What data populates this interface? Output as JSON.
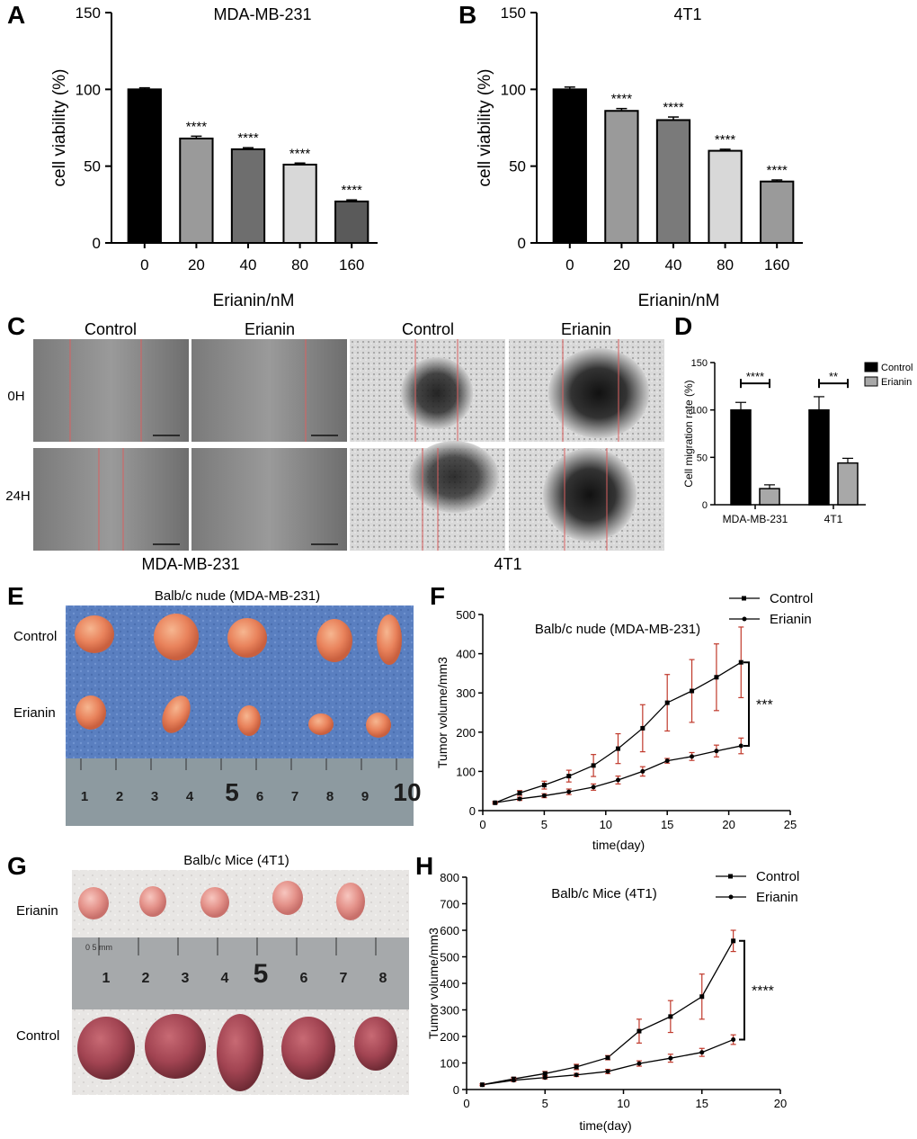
{
  "panels": {
    "A": {
      "letter": "A"
    },
    "B": {
      "letter": "B"
    },
    "C": {
      "letter": "C",
      "col_labels": [
        "Control",
        "Erianin",
        "Control",
        "Erianin"
      ],
      "row_labels": [
        "0H",
        "24H"
      ],
      "group_labels": [
        "MDA-MB-231",
        "4T1"
      ]
    },
    "D": {
      "letter": "D"
    },
    "E": {
      "letter": "E",
      "title": "Balb/c nude (MDA-MB-231)",
      "row_labels": [
        "Control",
        "Erianin"
      ],
      "ruler_numbers": [
        "1",
        "2",
        "3",
        "4",
        "5",
        "6",
        "7",
        "8",
        "9",
        "10"
      ]
    },
    "F": {
      "letter": "F"
    },
    "G": {
      "letter": "G",
      "title": "Balb/c Mice (4T1)",
      "row_labels": [
        "Erianin",
        "Control"
      ],
      "ruler_numbers": [
        "1",
        "2",
        "3",
        "4",
        "5",
        "6",
        "7",
        "8"
      ],
      "ruler_unit": "0 5 mm"
    },
    "H": {
      "letter": "H"
    }
  },
  "chart_data": [
    {
      "id": "A",
      "type": "bar",
      "title": "MDA-MB-231",
      "xlabel": "Erianin/nM",
      "ylabel": "cell viability (%)",
      "categories": [
        "0",
        "20",
        "40",
        "80",
        "160"
      ],
      "values": [
        100,
        68,
        61,
        51,
        27
      ],
      "errors": [
        1,
        1.5,
        1,
        1,
        1
      ],
      "significance": [
        "",
        "****",
        "****",
        "****",
        "****"
      ],
      "colors": [
        "#000000",
        "#9a9a9a",
        "#6e6e6e",
        "#d8d8d8",
        "#5a5a5a"
      ],
      "ylim": [
        0,
        150
      ],
      "yticks": [
        0,
        50,
        100,
        150
      ]
    },
    {
      "id": "B",
      "type": "bar",
      "title": "4T1",
      "xlabel": "Erianin/nM",
      "ylabel": "cell viability (%)",
      "categories": [
        "0",
        "20",
        "40",
        "80",
        "160"
      ],
      "values": [
        100,
        86,
        80,
        60,
        40
      ],
      "errors": [
        1.5,
        1.5,
        2,
        1,
        1
      ],
      "significance": [
        "",
        "****",
        "****",
        "****",
        "****"
      ],
      "colors": [
        "#000000",
        "#9a9a9a",
        "#7a7a7a",
        "#d8d8d8",
        "#9a9a9a"
      ],
      "ylim": [
        0,
        150
      ],
      "yticks": [
        0,
        50,
        100,
        150
      ]
    },
    {
      "id": "D",
      "type": "bar",
      "title": "",
      "xlabel": "",
      "ylabel": "Cell migration rate (%)",
      "categories": [
        "MDA-MB-231",
        "4T1"
      ],
      "series": [
        {
          "name": "Control",
          "values": [
            100,
            100
          ],
          "errors": [
            8,
            14
          ],
          "color": "#000000"
        },
        {
          "name": "Erianin",
          "values": [
            17,
            44
          ],
          "errors": [
            4,
            5
          ],
          "color": "#a8a8a8"
        }
      ],
      "significance": [
        "****",
        "**"
      ],
      "ylim": [
        0,
        150
      ],
      "yticks": [
        0,
        50,
        100,
        150
      ],
      "legend": "top-right"
    },
    {
      "id": "F",
      "type": "line",
      "title": "Balb/c nude (MDA-MB-231)",
      "xlabel": "time(day)",
      "ylabel": "Tumor volume/mm3",
      "x": [
        1,
        3,
        5,
        7,
        9,
        11,
        13,
        15,
        17,
        19,
        21
      ],
      "series": [
        {
          "name": "Control",
          "values": [
            20,
            45,
            65,
            88,
            115,
            158,
            210,
            275,
            305,
            340,
            378
          ],
          "errors": [
            3,
            6,
            10,
            15,
            28,
            38,
            60,
            72,
            80,
            85,
            90
          ],
          "marker": "square"
        },
        {
          "name": "Erianin",
          "values": [
            20,
            30,
            38,
            48,
            60,
            78,
            100,
            127,
            138,
            152,
            165
          ],
          "errors": [
            2,
            4,
            5,
            7,
            8,
            10,
            12,
            6,
            10,
            15,
            20
          ],
          "marker": "circle"
        }
      ],
      "significance": "***",
      "xlim": [
        0,
        25
      ],
      "xticks": [
        0,
        5,
        10,
        15,
        20,
        25
      ],
      "ylim": [
        0,
        500
      ],
      "yticks": [
        0,
        100,
        200,
        300,
        400,
        500
      ],
      "legend": "top-right"
    },
    {
      "id": "H",
      "type": "line",
      "title": "Balb/c Mice (4T1)",
      "xlabel": "time(day)",
      "ylabel": "Tumor volume/mm3",
      "x": [
        1,
        3,
        5,
        7,
        9,
        11,
        13,
        15,
        17
      ],
      "series": [
        {
          "name": "Control",
          "values": [
            18,
            40,
            60,
            85,
            120,
            220,
            275,
            350,
            560
          ],
          "errors": [
            3,
            6,
            8,
            10,
            8,
            45,
            60,
            85,
            40
          ],
          "marker": "square"
        },
        {
          "name": "Erianin",
          "values": [
            18,
            35,
            45,
            55,
            68,
            98,
            118,
            140,
            188
          ],
          "errors": [
            3,
            5,
            5,
            6,
            8,
            10,
            15,
            15,
            18
          ],
          "marker": "circle"
        }
      ],
      "significance": "****",
      "xlim": [
        0,
        20
      ],
      "xticks": [
        0,
        5,
        10,
        15,
        20
      ],
      "ylim": [
        0,
        800
      ],
      "yticks": [
        0,
        100,
        200,
        300,
        400,
        500,
        600,
        700,
        800
      ],
      "legend": "top-right"
    }
  ]
}
